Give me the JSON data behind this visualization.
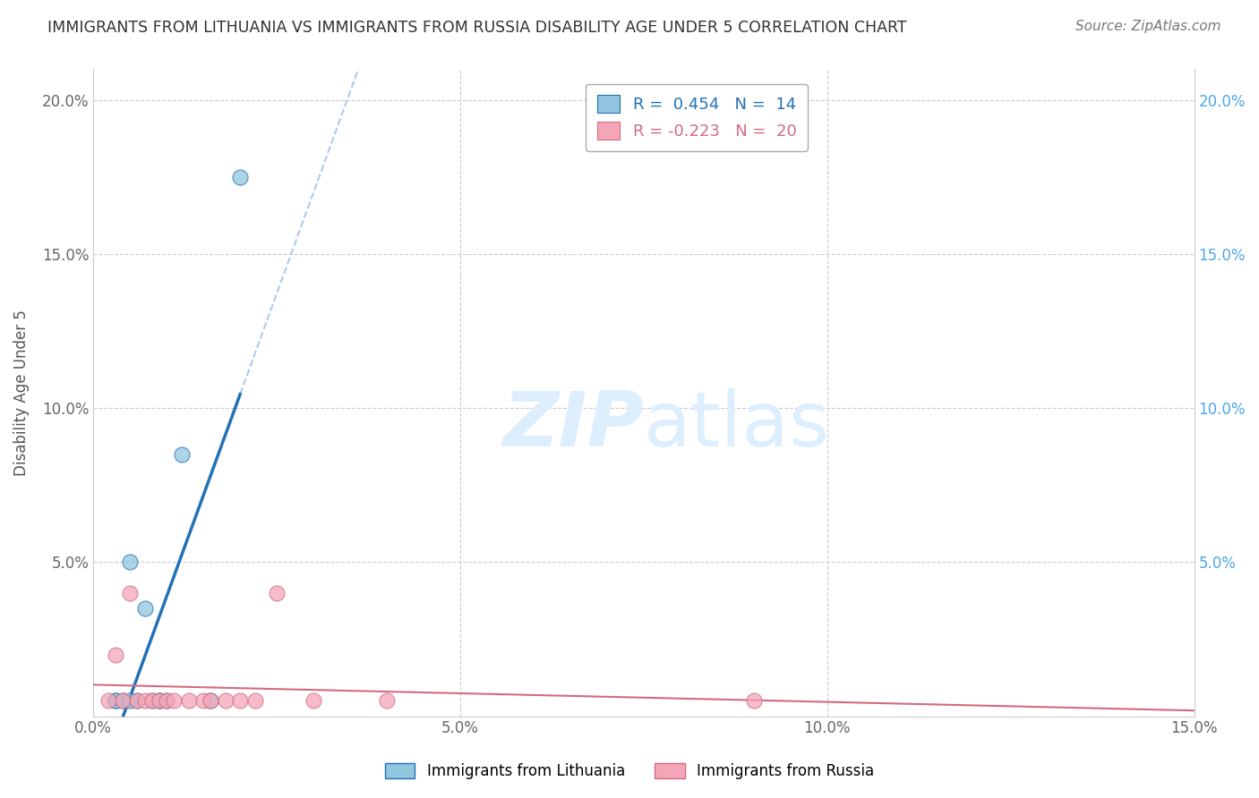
{
  "title": "IMMIGRANTS FROM LITHUANIA VS IMMIGRANTS FROM RUSSIA DISABILITY AGE UNDER 5 CORRELATION CHART",
  "source": "Source: ZipAtlas.com",
  "ylabel": "Disability Age Under 5",
  "xlim": [
    0.0,
    0.15
  ],
  "ylim": [
    0.0,
    0.21
  ],
  "xtick_vals": [
    0.0,
    0.05,
    0.1,
    0.15
  ],
  "ytick_vals": [
    0.0,
    0.05,
    0.1,
    0.15,
    0.2
  ],
  "xtick_labels": [
    "0.0%",
    "5.0%",
    "10.0%",
    "15.0%"
  ],
  "ytick_labels_left": [
    "",
    "5.0%",
    "10.0%",
    "15.0%",
    "20.0%"
  ],
  "ytick_labels_right": [
    "",
    "5.0%",
    "10.0%",
    "15.0%",
    "20.0%"
  ],
  "legend1_label": "Immigrants from Lithuania",
  "legend2_label": "Immigrants from Russia",
  "r_lithuania": 0.454,
  "n_lithuania": 14,
  "r_russia": -0.223,
  "n_russia": 20,
  "color_lithuania": "#92c5de",
  "color_russia": "#f4a6b8",
  "trendline_color_lithuania": "#2171b5",
  "trendline_color_russia": "#d46a80",
  "dashed_line_color": "#aaccee",
  "watermark_text": "ZIPatlas",
  "watermark_color": "#ddeeff",
  "lithuania_x": [
    0.003,
    0.003,
    0.004,
    0.005,
    0.005,
    0.006,
    0.007,
    0.008,
    0.009,
    0.009,
    0.01,
    0.012,
    0.016,
    0.02
  ],
  "lithuania_y": [
    0.005,
    0.005,
    0.005,
    0.005,
    0.05,
    0.005,
    0.035,
    0.005,
    0.005,
    0.005,
    0.005,
    0.085,
    0.005,
    0.175
  ],
  "russia_x": [
    0.002,
    0.003,
    0.004,
    0.005,
    0.006,
    0.007,
    0.008,
    0.009,
    0.01,
    0.011,
    0.013,
    0.015,
    0.016,
    0.018,
    0.02,
    0.022,
    0.025,
    0.03,
    0.04,
    0.09
  ],
  "russia_y": [
    0.005,
    0.02,
    0.005,
    0.04,
    0.005,
    0.005,
    0.005,
    0.005,
    0.005,
    0.005,
    0.005,
    0.005,
    0.005,
    0.005,
    0.005,
    0.005,
    0.04,
    0.005,
    0.005,
    0.005
  ],
  "background_color": "#ffffff",
  "grid_color": "#cccccc"
}
